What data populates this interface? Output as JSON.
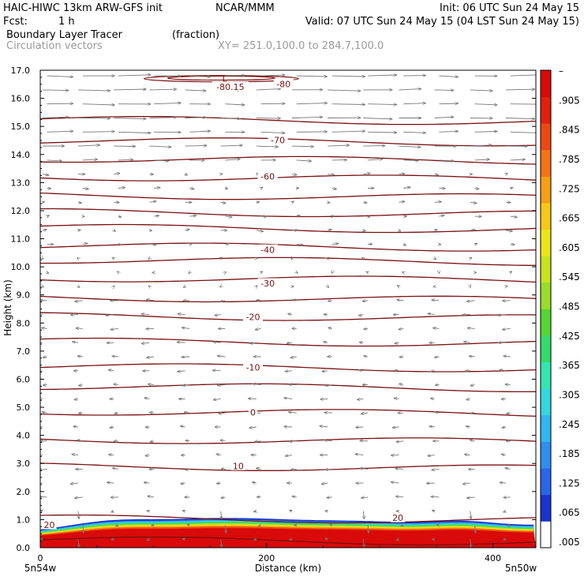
{
  "header": {
    "line1_left": "HAIC-HIWC 13km ARW-GFS init",
    "line1_mid": "NCAR/MMM",
    "line1_right": "Init: 06 UTC Sun 24 May 15",
    "line2_left_label": "Fcst:",
    "line2_left_value": "1 h",
    "line2_right": "Valid: 07 UTC Sun 24 May 15 (04 LST Sun 24 May 15)",
    "line3_left": "Boundary Layer Tracer",
    "line3_units": "(fraction)",
    "line4_left": "Circulation vectors",
    "line4_xy": "XY= 251.0,100.0 to 284.7,100.0"
  },
  "chart_data": {
    "type": "heatmap",
    "title": "Boundary Layer Tracer",
    "units": "(fraction)",
    "overlay": "Circulation vectors",
    "xlabel": "Distance (km)",
    "ylabel": "Height (km)",
    "xlim": [
      0,
      438
    ],
    "ylim": [
      0,
      17
    ],
    "x_ticks": [
      {
        "value": 0,
        "label": "0"
      },
      {
        "value": 200,
        "label": "200"
      },
      {
        "value": 400,
        "label": "400"
      }
    ],
    "x_end_labels": {
      "left": "5n54w",
      "right": "5n50w"
    },
    "y_ticks": [
      "0.0",
      "1.0",
      "2.0",
      "3.0",
      "4.0",
      "5.0",
      "6.0",
      "7.0",
      "8.0",
      "9.0",
      "10.0",
      "11.0",
      "12.0",
      "13.0",
      "14.0",
      "15.0",
      "16.0",
      "17.0"
    ],
    "colorbar": {
      "labels": [
        ".005",
        ".065",
        ".125",
        ".185",
        ".245",
        ".305",
        ".365",
        ".425",
        ".485",
        ".545",
        ".605",
        ".665",
        ".725",
        ".785",
        ".845",
        ".905",
        "–"
      ],
      "colors": [
        "#ffffff",
        "#1a33cc",
        "#2a66e8",
        "#2f8ef0",
        "#30b6f0",
        "#34d6e0",
        "#33e6b0",
        "#33dc6a",
        "#55d633",
        "#99dc2a",
        "#c8e21f",
        "#ece41a",
        "#f6c818",
        "#f69e16",
        "#f37414",
        "#ec4812",
        "#e2200e",
        "#d90a0a"
      ]
    },
    "contours": {
      "quantity": "temperature",
      "values": [
        20,
        10,
        0,
        -10,
        -20,
        -30,
        -40,
        -60,
        -70,
        -80
      ],
      "label_positions": [
        {
          "value": 20,
          "label": "20",
          "x": 8,
          "y": 0.8
        },
        {
          "value": 20,
          "label": "20",
          "x": 316,
          "y": 1.05
        },
        {
          "value": 10,
          "label": "10",
          "x": 175,
          "y": 2.9
        },
        {
          "value": 0,
          "label": "0",
          "x": 188,
          "y": 4.8
        },
        {
          "value": -10,
          "label": "-10",
          "x": 188,
          "y": 6.4
        },
        {
          "value": -20,
          "label": "-20",
          "x": 188,
          "y": 8.2
        },
        {
          "value": -30,
          "label": "-30",
          "x": 201,
          "y": 9.4
        },
        {
          "value": -40,
          "label": "-40",
          "x": 201,
          "y": 10.6
        },
        {
          "value": -60,
          "label": "-60",
          "x": 201,
          "y": 13.2
        },
        {
          "value": -70,
          "label": "-70",
          "x": 210,
          "y": 14.5
        },
        {
          "value": -80,
          "label": "-80",
          "x": 215,
          "y": 16.5
        },
        {
          "value": -80.15,
          "label": "-80.15",
          "x": 168,
          "y": 16.4
        }
      ],
      "extremum": {
        "label": "L",
        "x": 163,
        "y": 16.7
      }
    }
  }
}
